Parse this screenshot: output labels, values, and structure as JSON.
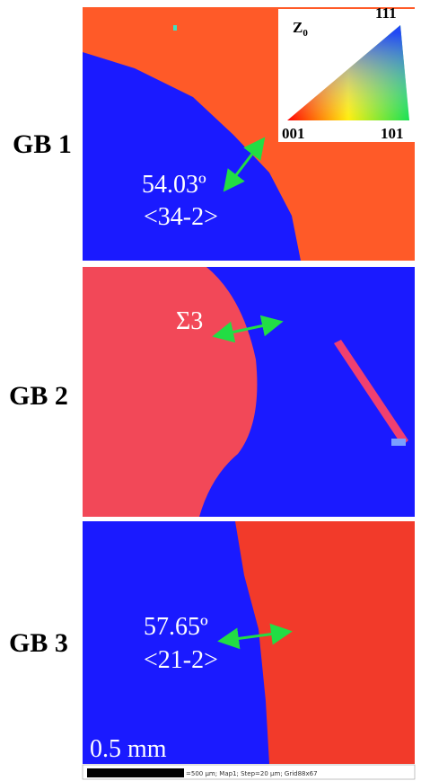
{
  "panels": [
    {
      "label": "GB 1",
      "angle": "54.03º",
      "axis": "<34-2>"
    },
    {
      "label": "GB 2",
      "angle": "Σ3"
    },
    {
      "label": "GB 3",
      "angle": "57.65º",
      "axis": "<21-2>"
    }
  ],
  "legend": {
    "axis": "Z",
    "axis_sub": "0",
    "top": "111",
    "left": "001",
    "right": "101"
  },
  "scale_bar": {
    "label": "0.5 mm",
    "caption": "=500 µm; Map1; Step=20 µm; Grid88x67"
  }
}
